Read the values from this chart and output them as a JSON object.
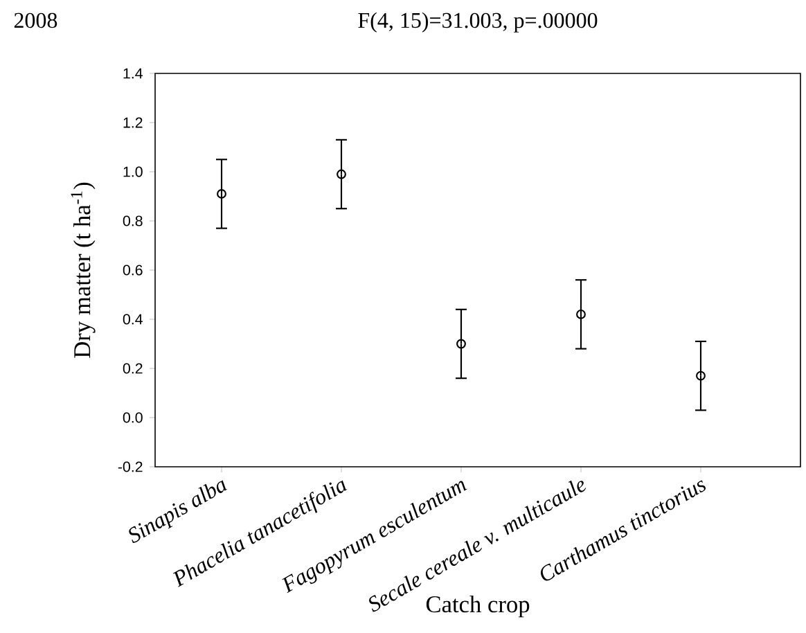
{
  "chart_data": {
    "type": "scatter",
    "title": "F(4, 15)=31.003, p=.00000",
    "annotations": [
      "2008"
    ],
    "xlabel": "Catch crop",
    "ylabel": "Dry matter (t ha$^{-1}$)",
    "categories": [
      "Sinapis alba",
      "Phacelia tanacetifolia",
      "Fagopyrum esculentum",
      "Secale cereale v. multicaule",
      "Carthamus tinctorius"
    ],
    "values": [
      0.91,
      0.99,
      0.3,
      0.42,
      0.17
    ],
    "errors": [
      0.14,
      0.14,
      0.14,
      0.14,
      0.14
    ],
    "color": "#000000",
    "marker": "circle",
    "ylim": [
      -0.2,
      1.4
    ],
    "yticks": [
      -0.2,
      {
        "value": 0.0,
        "label": "0.0"
      },
      0.2,
      0.4,
      0.6,
      0.8,
      {
        "value": 1.0,
        "label": "1.0"
      },
      1.2,
      1.4
    ],
    "grid": false
  }
}
